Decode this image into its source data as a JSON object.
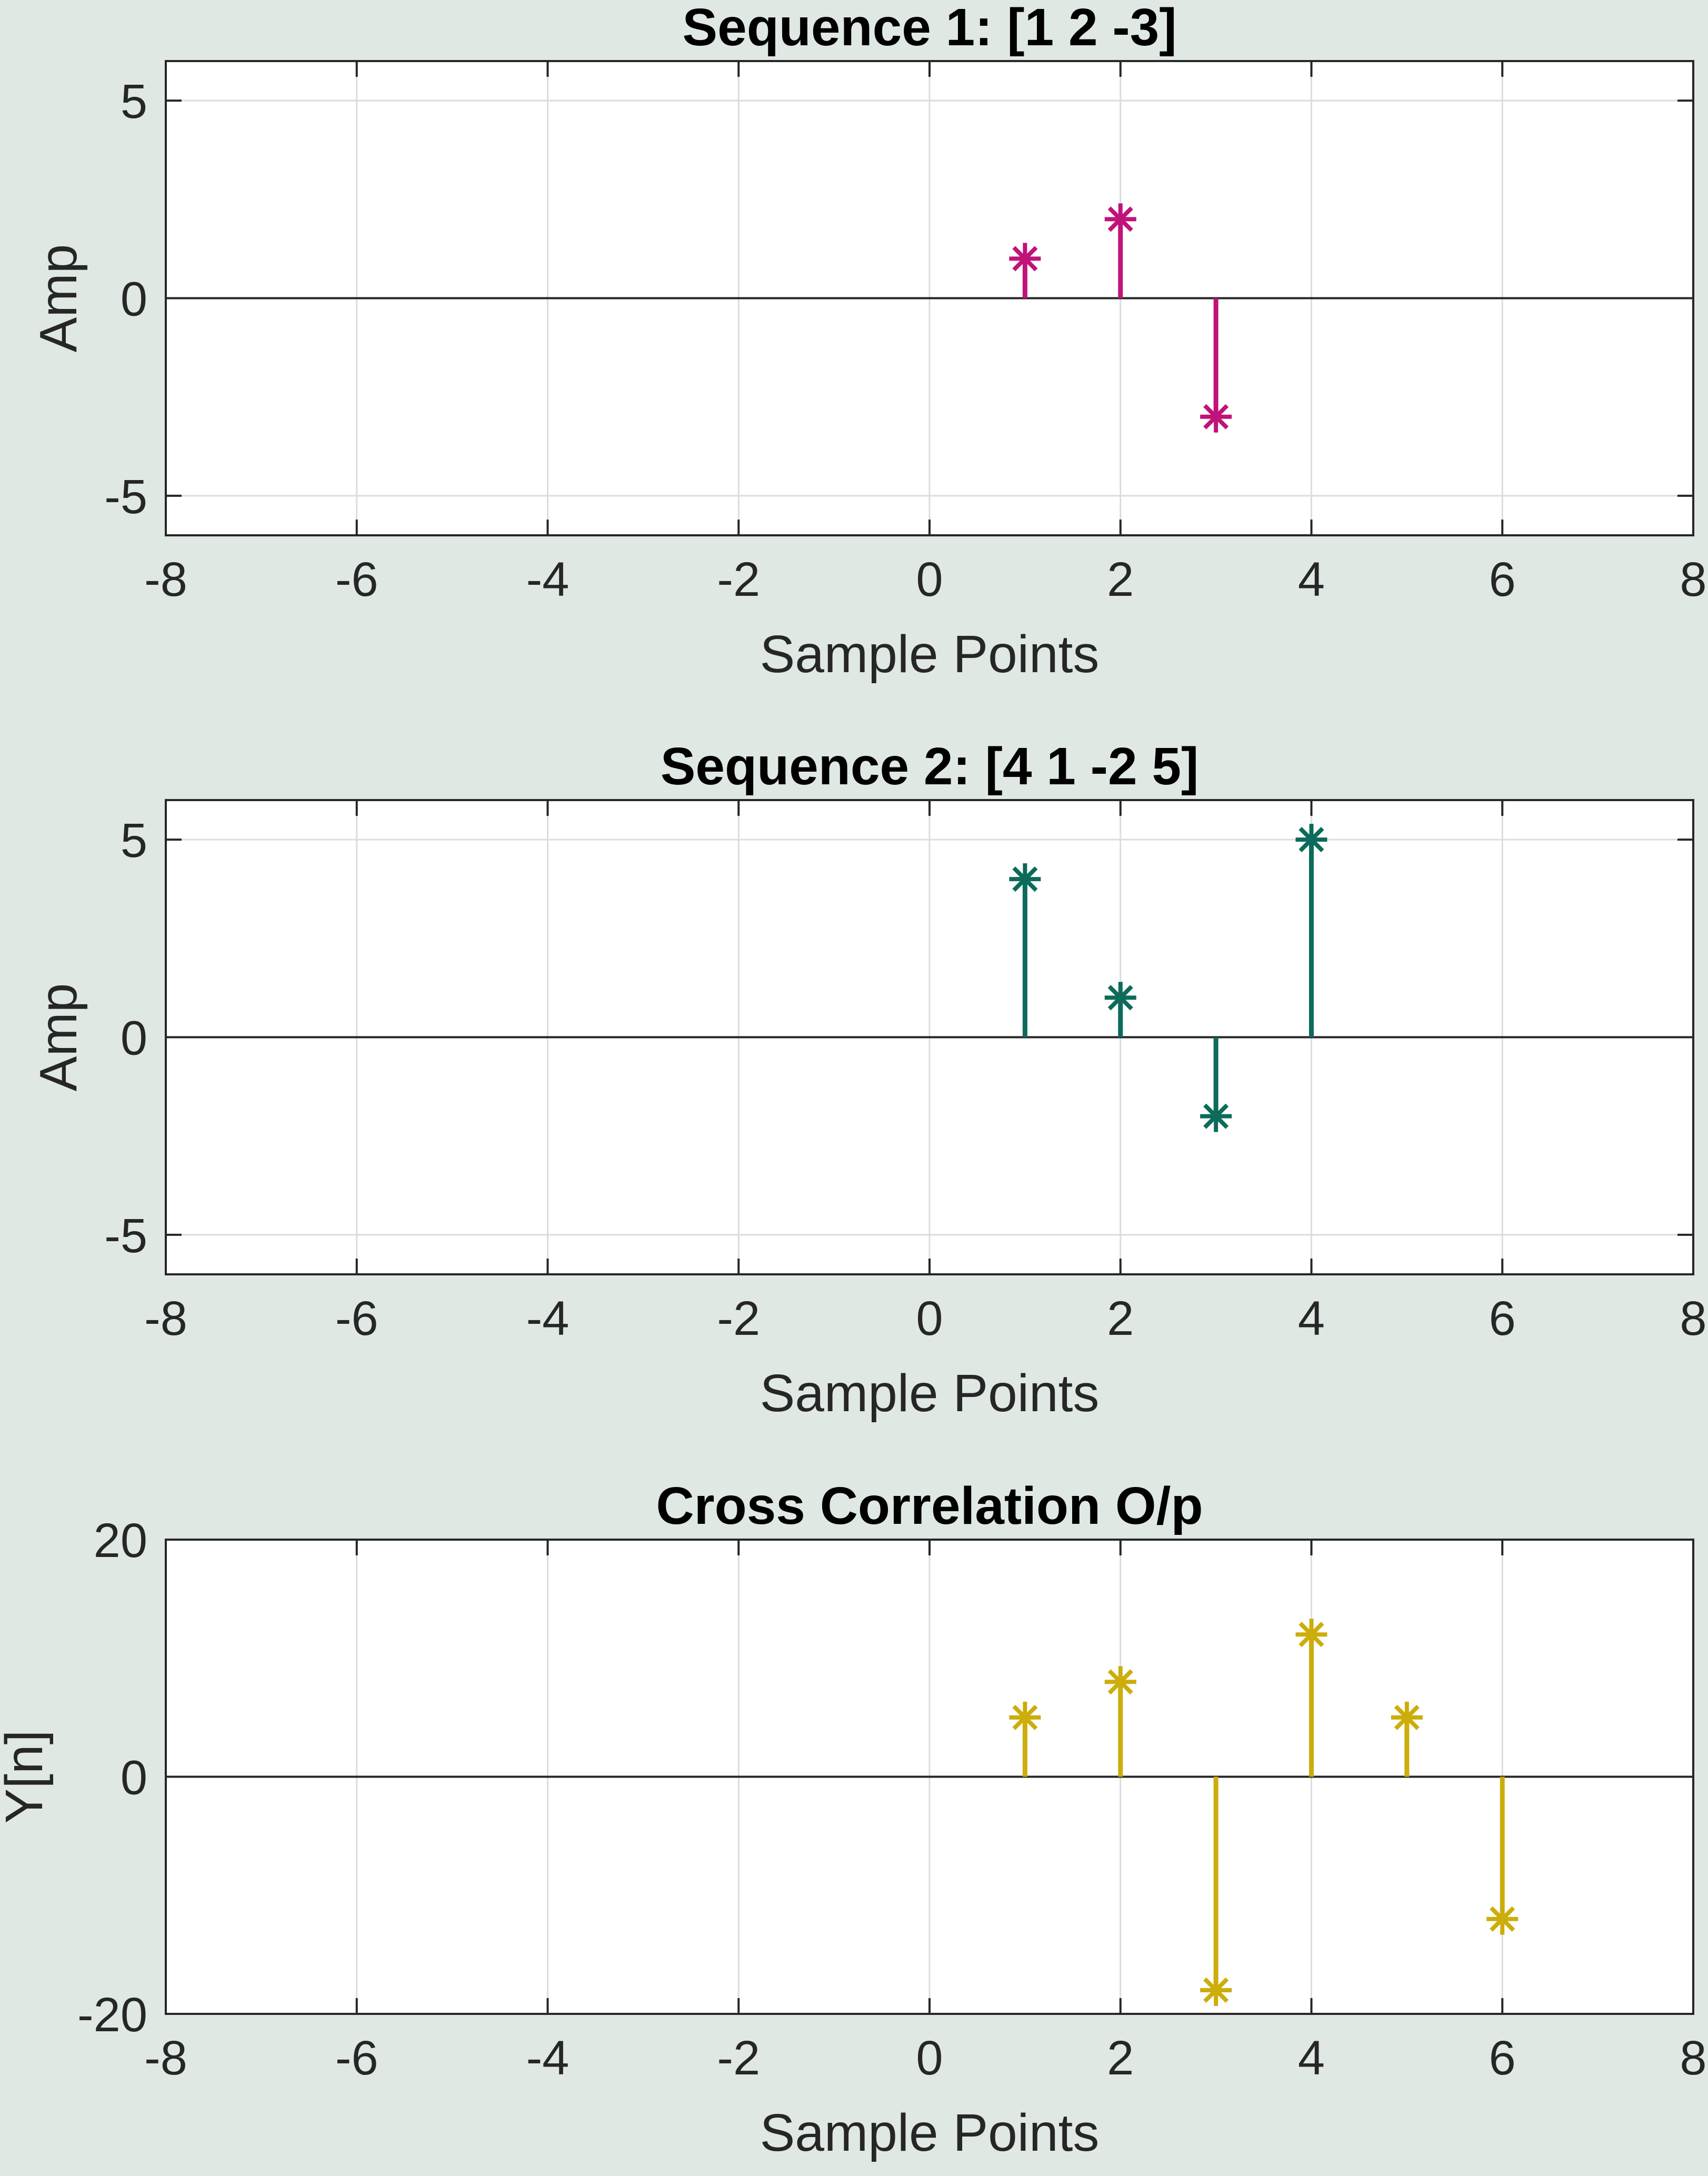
{
  "chart_data": [
    {
      "type": "stem",
      "title": "Sequence 1: [1 2 -3]",
      "xlabel": "Sample Points",
      "ylabel": "Amp",
      "xlim": [
        -8,
        8
      ],
      "ylim": [
        -6,
        6
      ],
      "xticks": [
        -8,
        -6,
        -4,
        -2,
        0,
        2,
        4,
        6,
        8
      ],
      "yticks": [
        -5,
        0,
        5
      ],
      "grid": true,
      "color": "#c0137a",
      "marker": "asterisk",
      "x": [
        1,
        2,
        3
      ],
      "y": [
        1,
        2,
        -3
      ]
    },
    {
      "type": "stem",
      "title": "Sequence 2: [4 1 -2 5]",
      "xlabel": "Sample Points",
      "ylabel": "Amp",
      "xlim": [
        -8,
        8
      ],
      "ylim": [
        -6,
        6
      ],
      "xticks": [
        -8,
        -6,
        -4,
        -2,
        0,
        2,
        4,
        6,
        8
      ],
      "yticks": [
        -5,
        0,
        5
      ],
      "grid": true,
      "color": "#0c6b5a",
      "marker": "asterisk",
      "x": [
        1,
        2,
        3,
        4
      ],
      "y": [
        4,
        1,
        -2,
        5
      ]
    },
    {
      "type": "stem",
      "title": "Cross Correlation O/p",
      "xlabel": "Sample Points",
      "ylabel": "Y[n]",
      "xlim": [
        -8,
        8
      ],
      "ylim": [
        -20,
        20
      ],
      "xticks": [
        -8,
        -6,
        -4,
        -2,
        0,
        2,
        4,
        6,
        8
      ],
      "yticks": [
        -20,
        0,
        20
      ],
      "grid": true,
      "color": "#ccad0a",
      "marker": "asterisk",
      "x": [
        1,
        2,
        3,
        4,
        5,
        6
      ],
      "y": [
        5,
        8,
        -18,
        12,
        5,
        -12
      ]
    }
  ]
}
